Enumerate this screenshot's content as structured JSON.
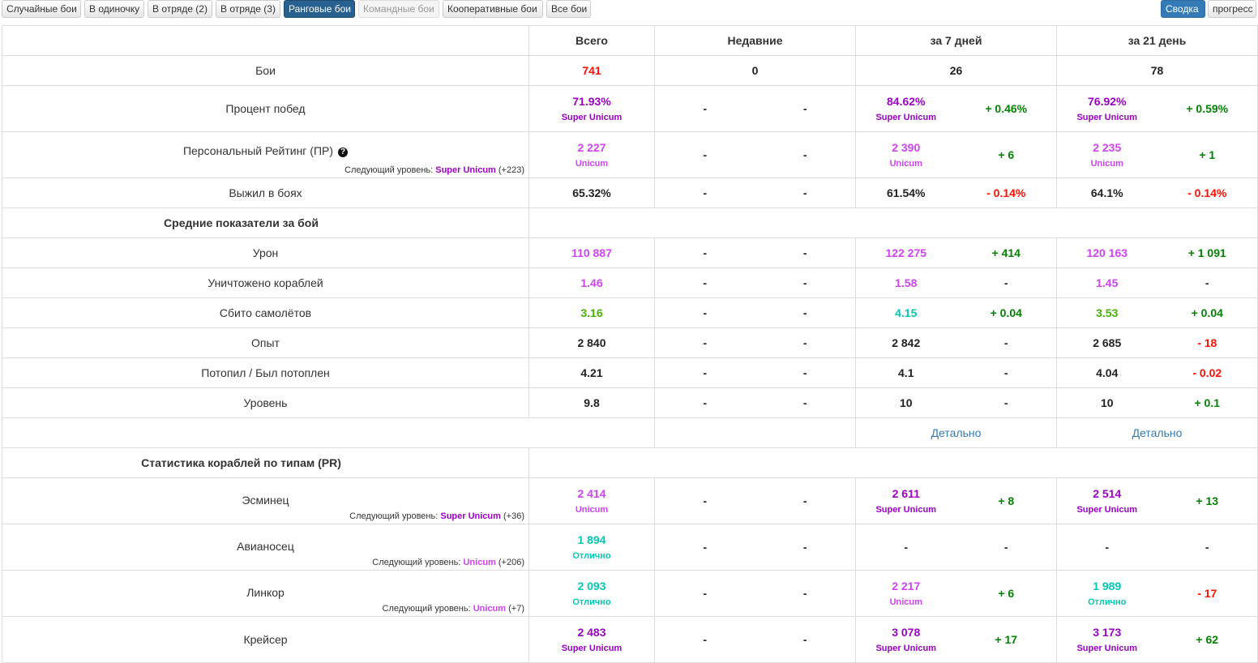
{
  "tabs": [
    "Случайные бои",
    "В одиночку",
    "В отряде (2)",
    "В отряде (3)",
    "Ранговые бои",
    "Командные бои",
    "Кооперативные бои",
    "Все бои"
  ],
  "right_buttons": [
    "Сводка",
    "прогресс"
  ],
  "columns": [
    "Всего",
    "Недавние",
    "за 7 дней",
    "за 21 день"
  ],
  "next_level_label": "Следующий уровень:",
  "dash": "-",
  "detail_link": "Детально",
  "colors": {
    "super_unicum": "#9d00c6",
    "unicum": "#d042f3",
    "excellent": "#02c9b3",
    "very_good": "#44b300",
    "positive": "#028102",
    "negative": "#fe0e00"
  },
  "rows": {
    "battles": {
      "label": "Бои",
      "total": "741",
      "recent": "0",
      "d7": "26",
      "d21": "78"
    },
    "winrate": {
      "label": "Процент побед",
      "total": "71.93%",
      "total_rank": "Super Unicum",
      "d7": "84.62%",
      "d7_rank": "Super Unicum",
      "d7_delta": "+ 0.46%",
      "d21": "76.92%",
      "d21_rank": "Super Unicum",
      "d21_delta": "+ 0.59%"
    },
    "pr": {
      "label": "Персональный Рейтинг (ПР)",
      "help_icon": "question-circle-icon",
      "next_rank": "Super Unicum",
      "next_delta": "(+223)",
      "total": "2 227",
      "total_rank": "Unicum",
      "d7": "2 390",
      "d7_rank": "Unicum",
      "d7_delta": "+ 6",
      "d21": "2 235",
      "d21_rank": "Unicum",
      "d21_delta": "+ 1"
    },
    "survived": {
      "label": "Выжил в боях",
      "total": "65.32%",
      "d7": "61.54%",
      "d7_delta": "- 0.14%",
      "d21": "64.1%",
      "d21_delta": "- 0.14%"
    },
    "avg_header": {
      "label": "Средние показатели за бой"
    },
    "damage": {
      "label": "Урон",
      "total": "110 887",
      "d7": "122 275",
      "d7_delta": "+ 414",
      "d21": "120 163",
      "d21_delta": "+ 1 091"
    },
    "kills": {
      "label": "Уничтожено кораблей",
      "total": "1.46",
      "d7": "1.58",
      "d7_delta": "-",
      "d21": "1.45",
      "d21_delta": "-"
    },
    "planes": {
      "label": "Сбито самолётов",
      "total": "3.16",
      "d7": "4.15",
      "d7_delta": "+ 0.04",
      "d21": "3.53",
      "d21_delta": "+ 0.04"
    },
    "xp": {
      "label": "Опыт",
      "total": "2 840",
      "d7": "2 842",
      "d7_delta": "-",
      "d21": "2 685",
      "d21_delta": "- 18"
    },
    "kd": {
      "label": "Потопил / Был потоплен",
      "total": "4.21",
      "d7": "4.1",
      "d7_delta": "-",
      "d21": "4.04",
      "d21_delta": "- 0.02"
    },
    "tier": {
      "label": "Уровень",
      "total": "9.8",
      "d7": "10",
      "d7_delta": "-",
      "d21": "10",
      "d21_delta": "+ 0.1"
    },
    "types_header": {
      "label": "Статистика кораблей по типам (PR)"
    },
    "dd": {
      "label": "Эсминец",
      "next_rank": "Super Unicum",
      "next_delta": "(+36)",
      "total": "2 414",
      "total_rank": "Unicum",
      "d7": "2 611",
      "d7_rank": "Super Unicum",
      "d7_delta": "+ 8",
      "d21": "2 514",
      "d21_rank": "Super Unicum",
      "d21_delta": "+ 13"
    },
    "cv": {
      "label": "Авианосец",
      "next_rank": "Unicum",
      "next_delta": "(+206)",
      "total": "1 894",
      "total_rank": "Отлично",
      "d7": "-",
      "d7_delta": "-",
      "d21": "-",
      "d21_delta": "-"
    },
    "bb": {
      "label": "Линкор",
      "next_rank": "Unicum",
      "next_delta": "(+7)",
      "total": "2 093",
      "total_rank": "Отлично",
      "d7": "2 217",
      "d7_rank": "Unicum",
      "d7_delta": "+ 6",
      "d21": "1 989",
      "d21_rank": "Отлично",
      "d21_delta": "- 17"
    },
    "ca": {
      "label": "Крейсер",
      "total": "2 483",
      "total_rank": "Super Unicum",
      "d7": "3 078",
      "d7_rank": "Super Unicum",
      "d7_delta": "+ 17",
      "d21": "3 173",
      "d21_rank": "Super Unicum",
      "d21_delta": "+ 62"
    }
  }
}
